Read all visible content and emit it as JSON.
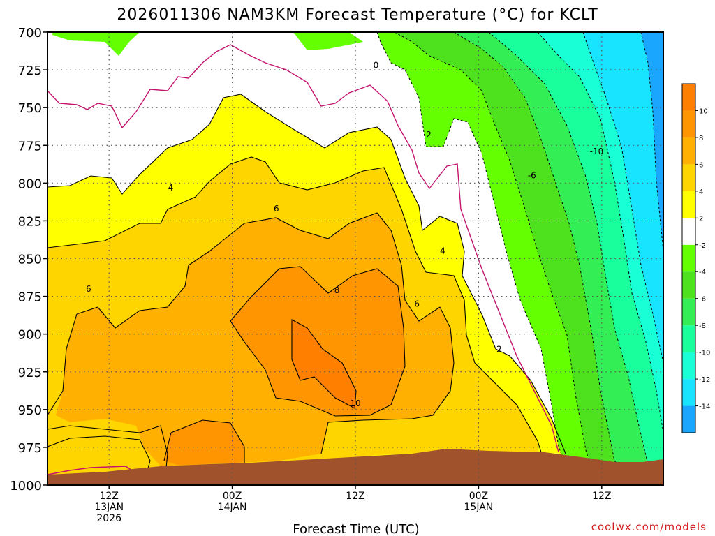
{
  "chart_data": {
    "type": "heatmap",
    "title": "2026011306 NAM3KM Forecast Temperature (°C) for KCLT",
    "xlabel": "Forecast Time (UTC)",
    "ylabel": "",
    "y_axis": {
      "levels": [
        700,
        725,
        750,
        775,
        800,
        825,
        850,
        875,
        900,
        925,
        950,
        975,
        1000
      ],
      "labels": [
        "700",
        "725",
        "750",
        "775",
        "800",
        "825",
        "850",
        "875",
        "900",
        "925",
        "950",
        "975",
        "1000"
      ],
      "range": [
        700,
        1000
      ],
      "inverted": true
    },
    "x_axis": {
      "range_hours": [
        0,
        60
      ],
      "ticks": [
        {
          "hour": 6,
          "line1": "12Z",
          "line2": "13JAN",
          "line3": "2026"
        },
        {
          "hour": 18,
          "line1": "00Z",
          "line2": "14JAN",
          "line3": ""
        },
        {
          "hour": 30,
          "line1": "12Z",
          "line2": "",
          "line3": ""
        },
        {
          "hour": 42,
          "line1": "00Z",
          "line2": "15JAN",
          "line3": ""
        },
        {
          "hour": 54,
          "line1": "12Z",
          "line2": "",
          "line3": ""
        }
      ]
    },
    "grid": true,
    "colorbar": {
      "bounds": [
        -16,
        -14,
        -12,
        -10,
        -8,
        -6,
        -4,
        -2,
        2,
        4,
        6,
        8,
        10,
        12
      ],
      "colors": [
        "#1aa6ff",
        "#19e4ff",
        "#19ffd6",
        "#19ff9b",
        "#33ef55",
        "#4ee11e",
        "#64ff00",
        "#ffffff",
        "#ffff00",
        "#ffd500",
        "#ffb000",
        "#ff9500",
        "#ff7f00"
      ],
      "tick_labels": [
        "-14",
        "-12",
        "-10",
        "-8",
        "-6",
        "-4",
        "-2",
        "2",
        "4",
        "6",
        "8",
        "10"
      ]
    },
    "contour_labels": [
      {
        "text": "0",
        "hour": 32.0,
        "pressure": 722
      },
      {
        "text": "-2",
        "hour": 37.0,
        "pressure": 768
      },
      {
        "text": "-6",
        "hour": 47.2,
        "pressure": 795
      },
      {
        "text": "-10",
        "hour": 53.5,
        "pressure": 779
      },
      {
        "text": "4",
        "hour": 12.0,
        "pressure": 803
      },
      {
        "text": "6",
        "hour": 22.3,
        "pressure": 817
      },
      {
        "text": "4",
        "hour": 38.5,
        "pressure": 845
      },
      {
        "text": "8",
        "hour": 28.2,
        "pressure": 871
      },
      {
        "text": "6",
        "hour": 4.0,
        "pressure": 870
      },
      {
        "text": "6",
        "hour": 36.0,
        "pressure": 880
      },
      {
        "text": "2",
        "hour": 44.0,
        "pressure": 910
      },
      {
        "text": "10",
        "hour": 30.0,
        "pressure": 946
      }
    ],
    "terrain_color": "#a0522d"
  },
  "credit": "coolwx.com/models"
}
